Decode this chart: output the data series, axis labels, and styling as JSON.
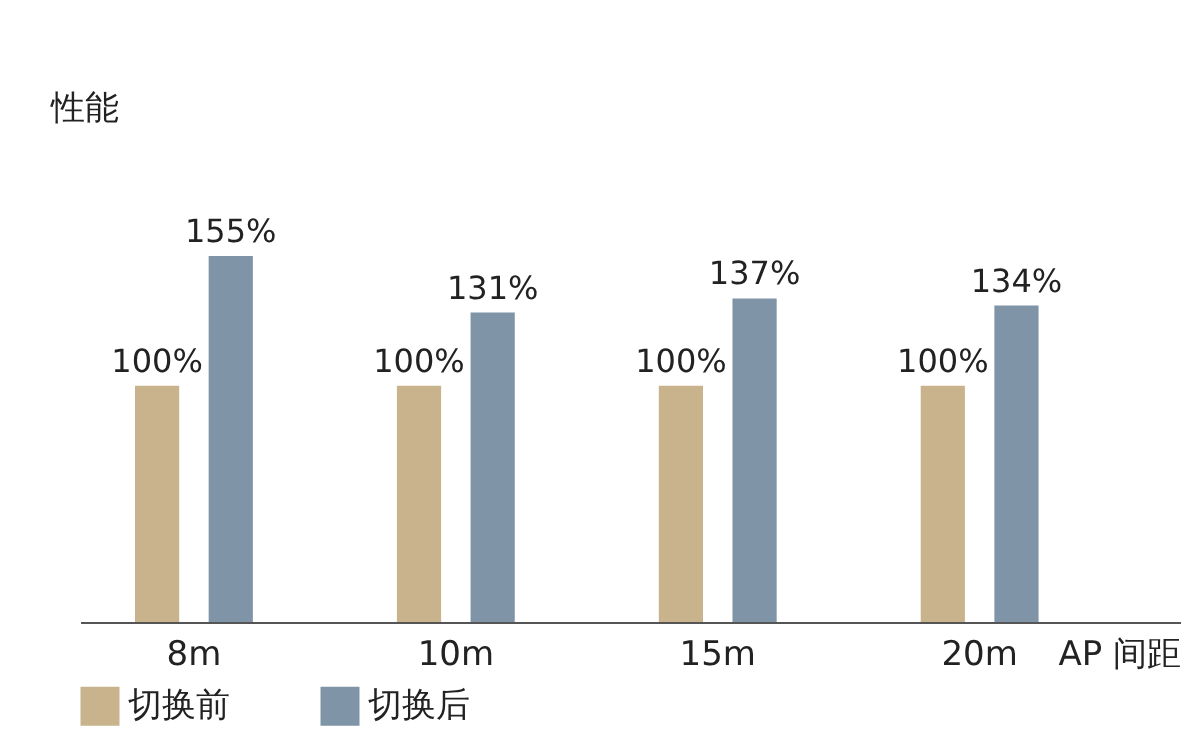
{
  "chart_data": {
    "type": "bar",
    "ylabel": "性能",
    "xlabel": "AP 间距",
    "categories": [
      "8m",
      "10m",
      "15m",
      "20m"
    ],
    "series": [
      {
        "name": "切换前",
        "color": "#c9b38c",
        "values": [
          100,
          100,
          100,
          100
        ],
        "value_labels": [
          "100%",
          "100%",
          "100%",
          "100%"
        ]
      },
      {
        "name": "切换后",
        "color": "#7f94a7",
        "values": [
          155,
          131,
          137,
          134
        ],
        "value_labels": [
          "155%",
          "131%",
          "137%",
          "134%"
        ]
      }
    ],
    "legend": "bottom"
  }
}
